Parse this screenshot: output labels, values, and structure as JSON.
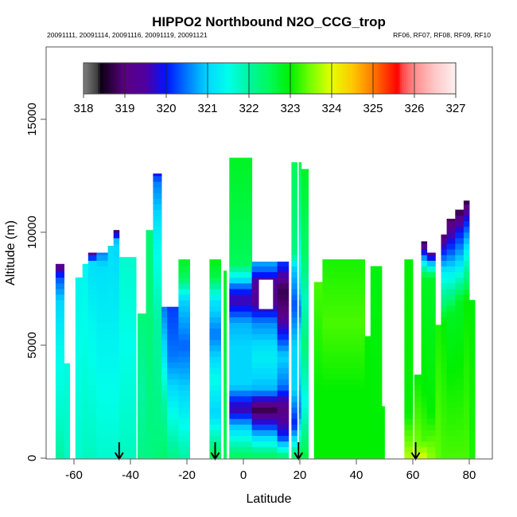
{
  "chart_data": {
    "type": "heatmap",
    "title": "HIPPO2 Northbound N2O_CCG_trop",
    "subtitle_left": "20091111, 20091114, 20091116, 20091119, 20091121",
    "subtitle_right": "RF06, RF07, RF08, RF09, RF10",
    "xlabel": "Latitude",
    "ylabel": "Altitude (m)",
    "xlim": [
      -70,
      90
    ],
    "ylim": [
      0,
      18200
    ],
    "xticks": [
      -60,
      -40,
      -20,
      0,
      20,
      40,
      60,
      80
    ],
    "xtick_labels": [
      "-60",
      "-40",
      "-20",
      "0",
      "20",
      "40",
      "60",
      "80"
    ],
    "yticks": [
      0,
      5000,
      10000,
      15000
    ],
    "ytick_labels": [
      "0",
      "5000",
      "10000",
      "15000"
    ],
    "colorbar": {
      "min": 318,
      "max": 327,
      "ticks": [
        318,
        319,
        320,
        321,
        322,
        323,
        324,
        325,
        326,
        327
      ],
      "tick_labels": [
        "318",
        "319",
        "320",
        "321",
        "322",
        "323",
        "324",
        "325",
        "326",
        "327"
      ],
      "placement": "top"
    },
    "markers": {
      "type": "down-arrow",
      "latitudes": [
        -44,
        -10,
        19.5,
        61
      ]
    },
    "columns": [
      {
        "lat": [
          -66.5,
          -63.5
        ],
        "top": 8600,
        "profile": [
          [
            0,
            322
          ],
          [
            2000,
            321.7
          ],
          [
            5000,
            321.4
          ],
          [
            7000,
            321
          ],
          [
            8000,
            320.3
          ],
          [
            8600,
            319
          ]
        ]
      },
      {
        "lat": [
          -63.5,
          -61.5
        ],
        "top": 4200,
        "profile": [
          [
            0,
            321.8
          ],
          [
            4200,
            321.6
          ]
        ]
      },
      {
        "lat": [
          -59.5,
          -57
        ],
        "top": 8000,
        "profile": [
          [
            0,
            321.7
          ],
          [
            5000,
            321.5
          ],
          [
            8000,
            321.4
          ]
        ]
      },
      {
        "lat": [
          -57,
          -55
        ],
        "top": 8600,
        "profile": [
          [
            0,
            321.8
          ],
          [
            6000,
            321.5
          ],
          [
            8600,
            321.4
          ]
        ]
      },
      {
        "lat": [
          -55,
          -52
        ],
        "top": 9100,
        "profile": [
          [
            0,
            321.8
          ],
          [
            6000,
            321.4
          ],
          [
            8700,
            321.1
          ],
          [
            9100,
            319
          ]
        ]
      },
      {
        "lat": [
          -52,
          -48
        ],
        "top": 9100,
        "profile": [
          [
            0,
            321.7
          ],
          [
            6000,
            321.3
          ],
          [
            8500,
            321.1
          ],
          [
            9100,
            320.5
          ]
        ]
      },
      {
        "lat": [
          -48,
          -46
        ],
        "top": 9400,
        "profile": [
          [
            0,
            321.7
          ],
          [
            6000,
            321.3
          ],
          [
            9400,
            321.1
          ]
        ]
      },
      {
        "lat": [
          -46,
          -44
        ],
        "top": 10100,
        "profile": [
          [
            0,
            321.7
          ],
          [
            6000,
            321.3
          ],
          [
            9600,
            321
          ],
          [
            9900,
            319.8
          ],
          [
            10100,
            318.5
          ]
        ]
      },
      {
        "lat": [
          -44,
          -38
        ],
        "top": 8900,
        "profile": [
          [
            0,
            321.8
          ],
          [
            5000,
            321.5
          ],
          [
            8900,
            321.7
          ]
        ]
      },
      {
        "lat": [
          -37.5,
          -34.5
        ],
        "top": 6400,
        "profile": [
          [
            0,
            322.2
          ],
          [
            3000,
            322
          ],
          [
            6400,
            322.3
          ]
        ]
      },
      {
        "lat": [
          -34.5,
          -32
        ],
        "top": 10100,
        "profile": [
          [
            0,
            322.2
          ],
          [
            5000,
            322.3
          ],
          [
            10100,
            322.3
          ]
        ]
      },
      {
        "lat": [
          -32,
          -29
        ],
        "top": 12600,
        "profile": [
          [
            0,
            322.3
          ],
          [
            6000,
            322
          ],
          [
            10000,
            321.3
          ],
          [
            12300,
            320.5
          ],
          [
            12600,
            319.8
          ]
        ]
      },
      {
        "lat": [
          -29,
          -27
        ],
        "top": 6700,
        "profile": [
          [
            0,
            322.4
          ],
          [
            2500,
            322
          ],
          [
            4500,
            321.2
          ],
          [
            6700,
            320.5
          ]
        ]
      },
      {
        "lat": [
          -27,
          -23
        ],
        "top": 6700,
        "profile": [
          [
            0,
            322.2
          ],
          [
            2000,
            321.5
          ],
          [
            4500,
            320.5
          ],
          [
            6700,
            320.2
          ]
        ]
      },
      {
        "lat": [
          -23,
          -19
        ],
        "top": 8800,
        "profile": [
          [
            0,
            322
          ],
          [
            2000,
            321.3
          ],
          [
            5000,
            320.4
          ],
          [
            7000,
            321
          ],
          [
            8000,
            322.5
          ],
          [
            8800,
            322.8
          ]
        ]
      },
      {
        "lat": [
          -12,
          -8
        ],
        "top": 8800,
        "profile": [
          [
            0,
            322.6
          ],
          [
            2000,
            321
          ],
          [
            3500,
            321.5
          ],
          [
            5500,
            320.5
          ],
          [
            7000,
            321.2
          ],
          [
            8000,
            322.6
          ],
          [
            8800,
            322.9
          ]
        ]
      },
      {
        "lat": [
          -7,
          -6
        ],
        "top": 8300,
        "profile": [
          [
            0,
            322.5
          ],
          [
            8300,
            322.8
          ]
        ]
      },
      {
        "lat": [
          -5,
          3
        ],
        "top": 13300,
        "profile": [
          [
            0,
            322.6
          ],
          [
            1500,
            320.8
          ],
          [
            2200,
            319.5
          ],
          [
            3200,
            321
          ],
          [
            5000,
            321
          ],
          [
            6000,
            320.8
          ],
          [
            7000,
            319.5
          ],
          [
            7500,
            320.2
          ],
          [
            8000,
            321.3
          ],
          [
            8600,
            322.5
          ],
          [
            13300,
            322.8
          ]
        ]
      },
      {
        "lat": [
          3,
          12
        ],
        "top": 8700,
        "profile": [
          [
            0,
            322.6
          ],
          [
            1200,
            320.6
          ],
          [
            2200,
            318.6
          ],
          [
            3000,
            320.8
          ],
          [
            4500,
            321.3
          ],
          [
            6000,
            320.6
          ],
          [
            7000,
            319.2
          ],
          [
            7800,
            319.4
          ],
          [
            8400,
            320.5
          ],
          [
            8700,
            320.8
          ]
        ]
      },
      {
        "lat": [
          12,
          16
        ],
        "top": 8700,
        "profile": [
          [
            0,
            322.5
          ],
          [
            1000,
            320
          ],
          [
            2200,
            319
          ],
          [
            3200,
            320.5
          ],
          [
            4500,
            321
          ],
          [
            6500,
            319
          ],
          [
            7500,
            318.7
          ],
          [
            8300,
            319.8
          ],
          [
            8700,
            320.2
          ]
        ]
      },
      {
        "lat": [
          17,
          19
        ],
        "top": 13100,
        "profile": [
          [
            0,
            322.6
          ],
          [
            1500,
            320
          ],
          [
            3000,
            321
          ],
          [
            5000,
            321
          ],
          [
            6800,
            320.3
          ],
          [
            8500,
            321
          ],
          [
            9000,
            322.2
          ],
          [
            13100,
            322.5
          ]
        ]
      },
      {
        "lat": [
          19.5,
          20.5
        ],
        "top": 13100,
        "profile": [
          [
            0,
            322.7
          ],
          [
            2000,
            320.5
          ],
          [
            5000,
            321.5
          ],
          [
            6500,
            320.5
          ],
          [
            8000,
            321.3
          ],
          [
            13100,
            322.6
          ]
        ]
      },
      {
        "lat": [
          20.5,
          23
        ],
        "top": 12800,
        "profile": [
          [
            0,
            322.7
          ],
          [
            2500,
            321.5
          ],
          [
            5000,
            322.3
          ],
          [
            7000,
            321.8
          ],
          [
            9000,
            322.4
          ],
          [
            12800,
            322.8
          ]
        ]
      },
      {
        "lat": [
          25,
          28
        ],
        "top": 7800,
        "profile": [
          [
            0,
            323
          ],
          [
            3000,
            323
          ],
          [
            7800,
            323.3
          ]
        ]
      },
      {
        "lat": [
          28,
          43
        ],
        "top": 8800,
        "profile": [
          [
            0,
            323
          ],
          [
            3000,
            323
          ],
          [
            6000,
            323.3
          ],
          [
            8800,
            323.1
          ]
        ]
      },
      {
        "lat": [
          43,
          45
        ],
        "top": 5400,
        "profile": [
          [
            0,
            323
          ],
          [
            5400,
            323
          ]
        ]
      },
      {
        "lat": [
          45,
          49
        ],
        "top": 8500,
        "profile": [
          [
            0,
            323
          ],
          [
            8500,
            322.9
          ]
        ]
      },
      {
        "lat": [
          49,
          50
        ],
        "top": 2300,
        "profile": [
          [
            0,
            323
          ],
          [
            2300,
            323
          ]
        ]
      },
      {
        "lat": [
          57,
          60
        ],
        "top": 8800,
        "profile": [
          [
            0,
            323.8
          ],
          [
            600,
            323.5
          ],
          [
            2000,
            323
          ],
          [
            8800,
            323
          ]
        ]
      },
      {
        "lat": [
          60.5,
          63
        ],
        "top": 3700,
        "profile": [
          [
            0,
            324
          ],
          [
            500,
            323.5
          ],
          [
            3700,
            323
          ]
        ]
      },
      {
        "lat": [
          63,
          65
        ],
        "top": 9600,
        "profile": [
          [
            0,
            324
          ],
          [
            800,
            323.3
          ],
          [
            3000,
            323
          ],
          [
            8000,
            322.8
          ],
          [
            8600,
            321.5
          ],
          [
            9100,
            320
          ],
          [
            9600,
            318.6
          ]
        ]
      },
      {
        "lat": [
          65,
          68
        ],
        "top": 9100,
        "profile": [
          [
            0,
            323.6
          ],
          [
            2000,
            323
          ],
          [
            8000,
            322.8
          ],
          [
            8600,
            321
          ],
          [
            9100,
            319
          ]
        ]
      },
      {
        "lat": [
          68,
          70
        ],
        "top": 5900,
        "profile": [
          [
            0,
            323.4
          ],
          [
            5900,
            323.1
          ]
        ]
      },
      {
        "lat": [
          70,
          72
        ],
        "top": 9900,
        "profile": [
          [
            0,
            323.3
          ],
          [
            6000,
            323
          ],
          [
            8200,
            321.3
          ],
          [
            9200,
            320
          ],
          [
            9900,
            318.8
          ]
        ]
      },
      {
        "lat": [
          72,
          75
        ],
        "top": 10600,
        "profile": [
          [
            0,
            323.3
          ],
          [
            6500,
            322.8
          ],
          [
            8000,
            321.5
          ],
          [
            9500,
            320
          ],
          [
            10600,
            318.8
          ]
        ]
      },
      {
        "lat": [
          75,
          78
        ],
        "top": 11000,
        "profile": [
          [
            0,
            323.3
          ],
          [
            7000,
            322.8
          ],
          [
            8500,
            321.2
          ],
          [
            10000,
            320
          ],
          [
            11000,
            318.6
          ]
        ]
      },
      {
        "lat": [
          78,
          80
        ],
        "top": 11400,
        "profile": [
          [
            0,
            323.3
          ],
          [
            7000,
            323
          ],
          [
            9000,
            321.5
          ],
          [
            10500,
            320
          ],
          [
            11400,
            318.6
          ]
        ]
      },
      {
        "lat": [
          80,
          82
        ],
        "top": 7000,
        "profile": [
          [
            0,
            323.1
          ],
          [
            7000,
            323
          ]
        ]
      }
    ],
    "gaps": [
      {
        "lat": [
          5.5,
          10.5
        ],
        "alt": [
          6600,
          7900
        ],
        "note": "no data"
      }
    ]
  }
}
